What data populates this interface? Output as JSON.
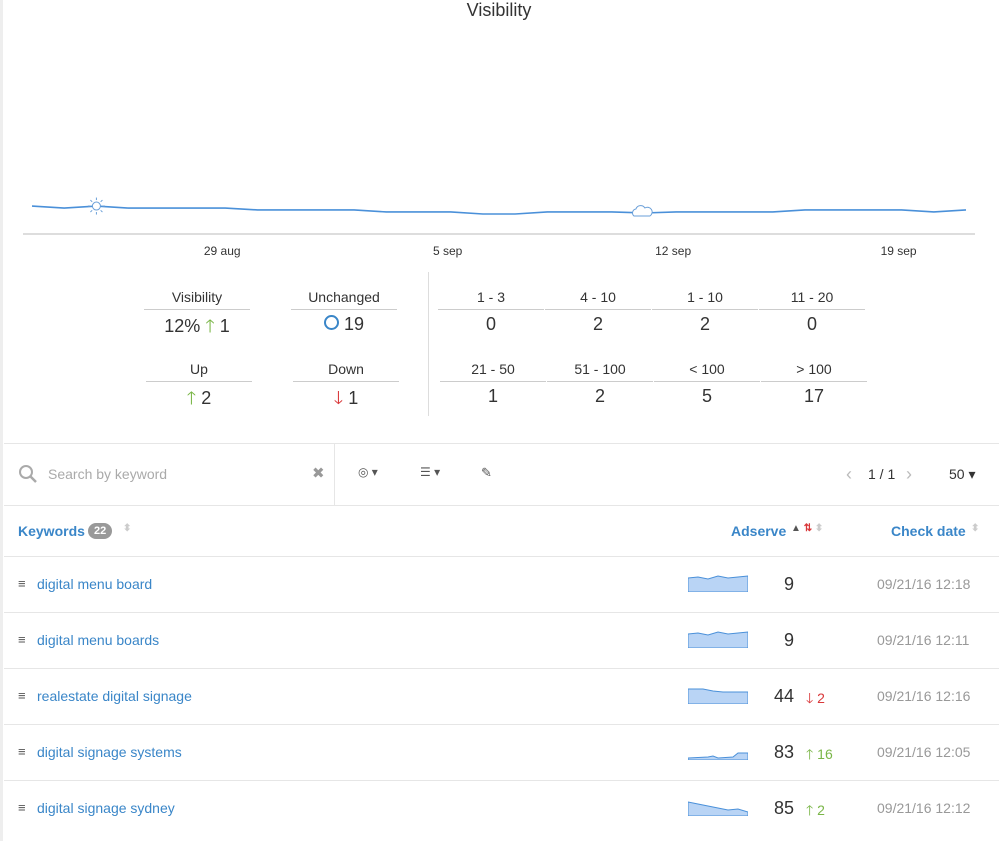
{
  "chart_data": {
    "type": "line",
    "title": "Visibility",
    "categories": [
      null,
      null,
      null,
      null,
      null,
      null,
      "29 aug",
      null,
      null,
      null,
      null,
      null,
      null,
      "5 sep",
      null,
      null,
      null,
      null,
      null,
      null,
      "12 sep",
      null,
      null,
      null,
      null,
      null,
      null,
      "19 sep",
      null,
      null
    ],
    "values": [
      13.7,
      12.7,
      13.7,
      12.7,
      12.7,
      12.7,
      12.7,
      11.8,
      11.8,
      11.8,
      11.8,
      10.8,
      10.8,
      10.8,
      9.8,
      9.8,
      10.8,
      10.8,
      10.8,
      10.3,
      10.8,
      10.8,
      10.8,
      10.8,
      11.8,
      11.8,
      11.8,
      11.8,
      10.8,
      11.8
    ],
    "color": "#4a90d9",
    "ylim": [
      0,
      100
    ]
  },
  "summary": {
    "visibility": {
      "label": "Visibility",
      "value": "12%",
      "change": 1
    },
    "unchanged": {
      "label": "Unchanged",
      "value": 19
    },
    "up": {
      "label": "Up",
      "value": 2
    },
    "down": {
      "label": "Down",
      "value": 1
    }
  },
  "ranges": [
    {
      "label": "1 - 3",
      "count": 0
    },
    {
      "label": "4 - 10",
      "count": 2
    },
    {
      "label": "1 - 10",
      "count": 2
    },
    {
      "label": "11 - 20",
      "count": 0
    },
    {
      "label": "21 - 50",
      "count": 1
    },
    {
      "label": "51 - 100",
      "count": 2
    },
    {
      "label": "< 100",
      "count": 5
    },
    {
      "label": "> 100",
      "count": 17
    }
  ],
  "toolbar": {
    "search_placeholder": "Search by keyword",
    "pagination": "1 / 1",
    "page_size": 50
  },
  "table": {
    "headers": {
      "keywords": "Keywords",
      "keyword_count": 22,
      "rank": "Adserve",
      "date": "Check date"
    },
    "rows": [
      {
        "keyword": "digital menu board",
        "rank": 9,
        "date": "09/21/16 12:18"
      },
      {
        "keyword": "digital menu boards",
        "rank": 9,
        "date": "09/21/16 12:11"
      },
      {
        "keyword": "realestate digital signage",
        "rank": 44,
        "change": {
          "direction": "down",
          "value": 2
        },
        "date": "09/21/16 12:16"
      },
      {
        "keyword": "digital signage systems",
        "rank": 83,
        "change": {
          "direction": "up",
          "value": 16
        },
        "date": "09/21/16 12:05"
      },
      {
        "keyword": "digital signage sydney",
        "rank": 85,
        "change": {
          "direction": "up",
          "value": 2
        },
        "date": "09/21/16 12:12"
      }
    ]
  }
}
